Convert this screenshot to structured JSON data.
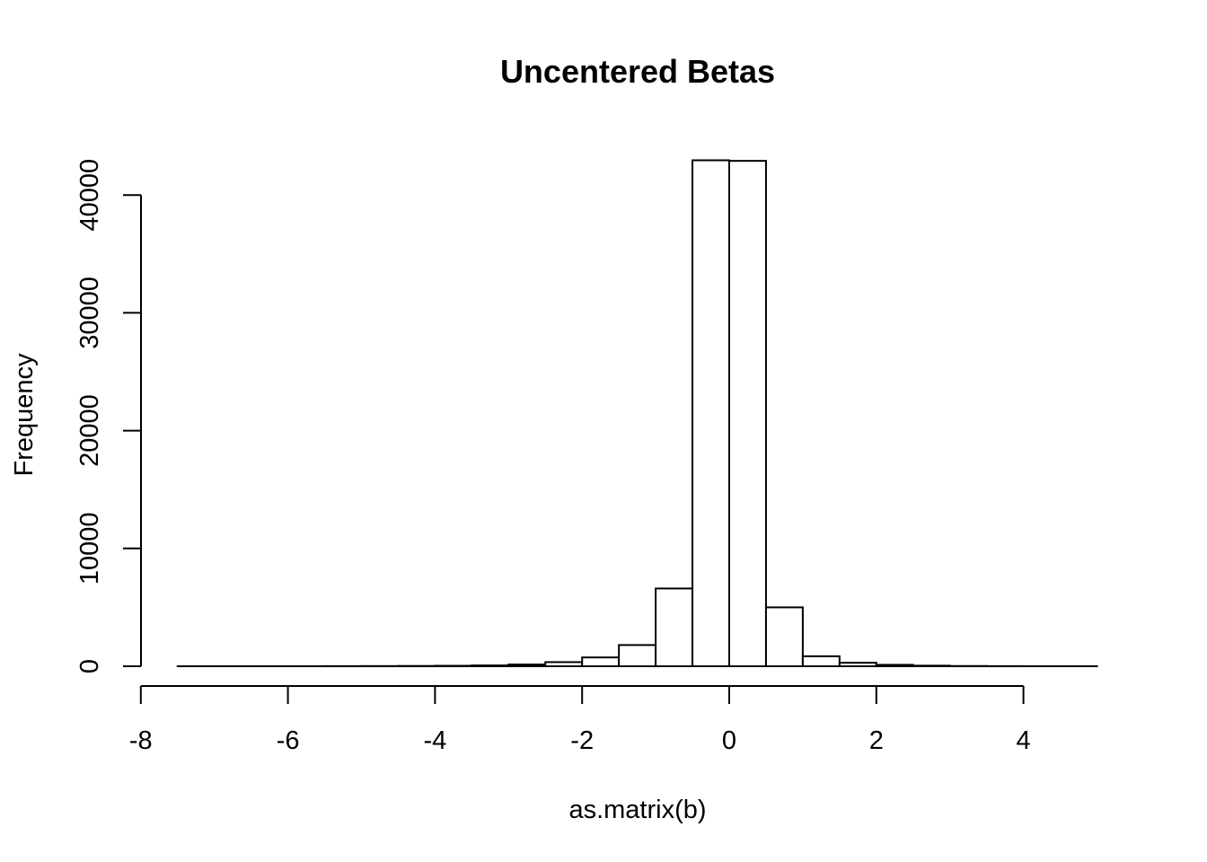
{
  "chart_data": {
    "type": "bar",
    "subtype": "histogram",
    "title": "Uncentered Betas",
    "xlabel": "as.matrix(b)",
    "ylabel": "Frequency",
    "xlim": [
      -8,
      5
    ],
    "ylim": [
      0,
      43000
    ],
    "x_ticks": [
      -8,
      -6,
      -4,
      -2,
      0,
      2,
      4
    ],
    "x_tick_labels": [
      "-8",
      "-6",
      "-4",
      "-2",
      "0",
      "2",
      "4"
    ],
    "y_ticks": [
      0,
      10000,
      20000,
      30000,
      40000
    ],
    "y_tick_labels": [
      "0",
      "10000",
      "20000",
      "30000",
      "40000"
    ],
    "bin_width": 0.5,
    "bins": [
      {
        "x0": -7.5,
        "x1": -7.0,
        "count": 2
      },
      {
        "x0": -7.0,
        "x1": -6.5,
        "count": 3
      },
      {
        "x0": -6.5,
        "x1": -6.0,
        "count": 4
      },
      {
        "x0": -6.0,
        "x1": -5.5,
        "count": 6
      },
      {
        "x0": -5.5,
        "x1": -5.0,
        "count": 10
      },
      {
        "x0": -5.0,
        "x1": -4.5,
        "count": 15
      },
      {
        "x0": -4.5,
        "x1": -4.0,
        "count": 25
      },
      {
        "x0": -4.0,
        "x1": -3.5,
        "count": 40
      },
      {
        "x0": -3.5,
        "x1": -3.0,
        "count": 70
      },
      {
        "x0": -3.0,
        "x1": -2.5,
        "count": 150
      },
      {
        "x0": -2.5,
        "x1": -2.0,
        "count": 350
      },
      {
        "x0": -2.0,
        "x1": -1.5,
        "count": 750
      },
      {
        "x0": -1.5,
        "x1": -1.0,
        "count": 1800
      },
      {
        "x0": -1.0,
        "x1": -0.5,
        "count": 6600
      },
      {
        "x0": -0.5,
        "x1": 0.0,
        "count": 42950
      },
      {
        "x0": 0.0,
        "x1": 0.5,
        "count": 42900
      },
      {
        "x0": 0.5,
        "x1": 1.0,
        "count": 5000
      },
      {
        "x0": 1.0,
        "x1": 1.5,
        "count": 850
      },
      {
        "x0": 1.5,
        "x1": 2.0,
        "count": 300
      },
      {
        "x0": 2.0,
        "x1": 2.5,
        "count": 120
      },
      {
        "x0": 2.5,
        "x1": 3.0,
        "count": 50
      },
      {
        "x0": 3.0,
        "x1": 3.5,
        "count": 20
      },
      {
        "x0": 3.5,
        "x1": 4.0,
        "count": 10
      },
      {
        "x0": 4.0,
        "x1": 4.5,
        "count": 5
      },
      {
        "x0": 4.5,
        "x1": 5.0,
        "count": 3
      }
    ],
    "grid": false,
    "legend": "none"
  }
}
